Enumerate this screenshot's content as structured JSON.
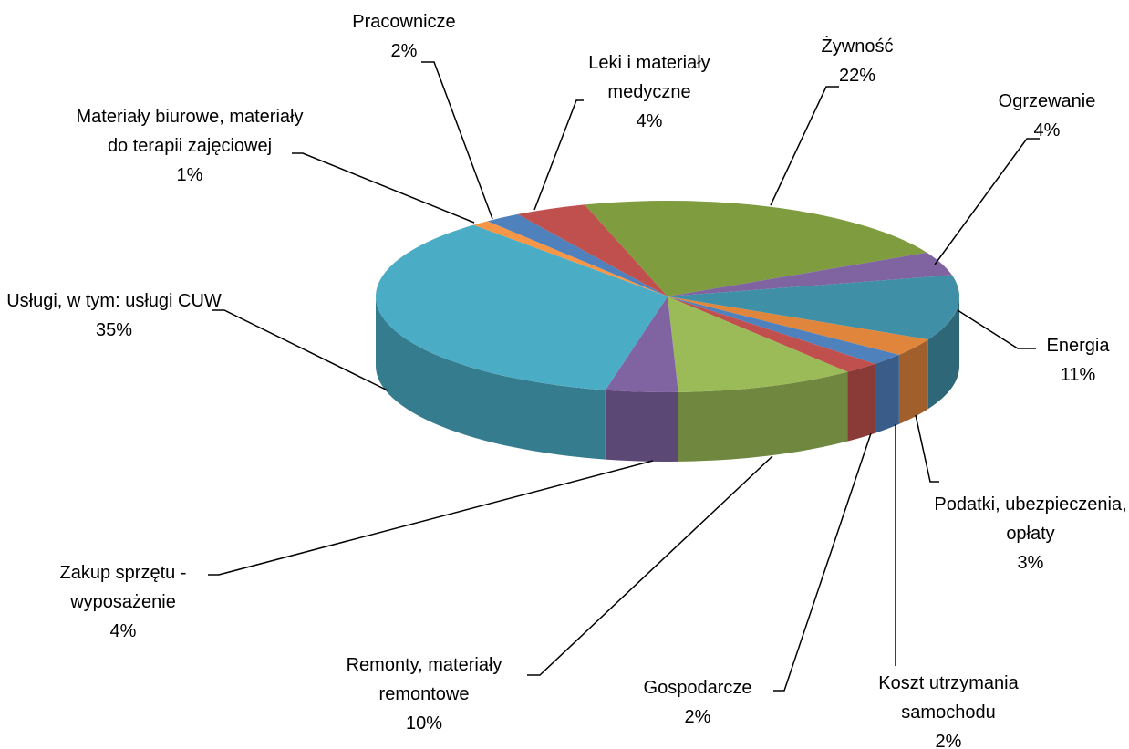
{
  "chart_data": {
    "type": "pie3d",
    "categories": [
      "Materiały biurowe, materiały do terapii zajęciowej",
      "Pracownicze",
      "Leki i materiały medyczne",
      "Żywność",
      "Ogrzewanie",
      "Energia",
      "Podatki, ubezpieczenia, opłaty",
      "Koszt utrzymania samochodu",
      "Gospodarcze",
      "Remonty, materiały remontowe",
      "Zakup sprzętu - wyposażenie",
      "Usługi, w tym: usługi CUW"
    ],
    "values": [
      1,
      2,
      4,
      22,
      4,
      11,
      3,
      2,
      2,
      10,
      4,
      35
    ],
    "value_labels": [
      "1%",
      "2%",
      "4%",
      "22%",
      "4%",
      "11%",
      "3%",
      "2%",
      "2%",
      "10%",
      "4%",
      "35%"
    ],
    "colors": [
      "#f79646",
      "#4f81bd",
      "#c0504d",
      "#7f9c3f",
      "#8064a2",
      "#3f8fa6",
      "#e0853c",
      "#4f81bd",
      "#c0504d",
      "#9bbb59",
      "#8064a2",
      "#4bacc6"
    ]
  }
}
